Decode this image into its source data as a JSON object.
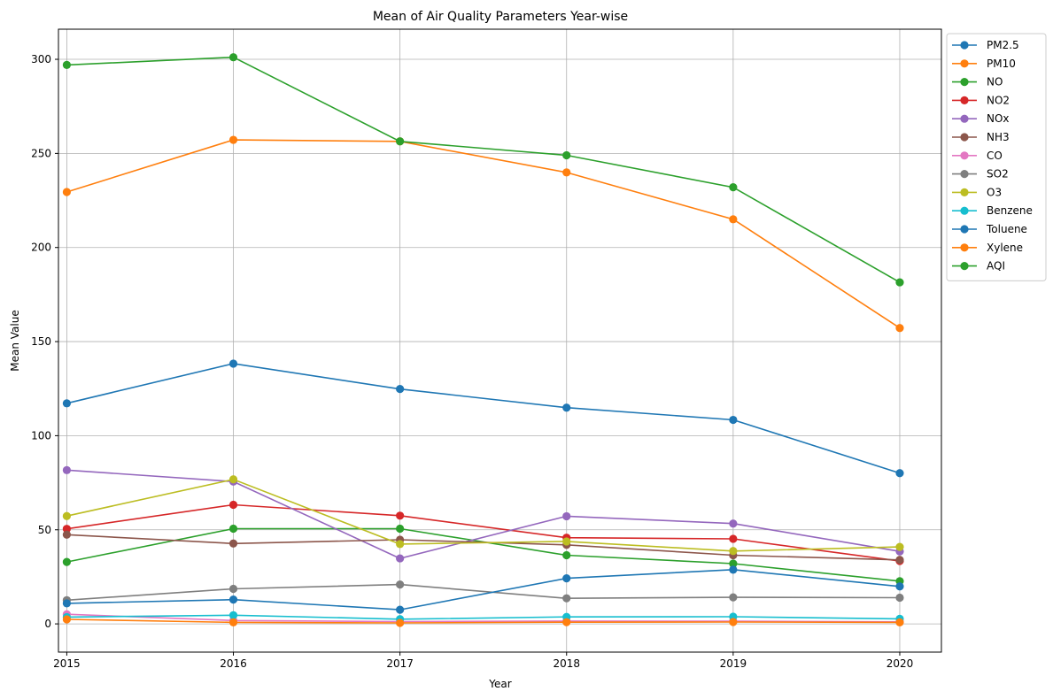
{
  "chart_data": {
    "type": "line",
    "title": "Mean of Air Quality Parameters Year-wise",
    "xlabel": "Year",
    "ylabel": "Mean Value",
    "x": [
      2015,
      2016,
      2017,
      2018,
      2019,
      2020
    ],
    "xlim": [
      2014.95,
      2020.25
    ],
    "ylim": [
      -15,
      316
    ],
    "yticks": [
      0,
      50,
      100,
      150,
      200,
      250,
      300
    ],
    "grid": true,
    "legend_position": "outside upper-right",
    "series": [
      {
        "name": "PM2.5",
        "color": "#1f77b4",
        "values": [
          117.2,
          138.3,
          124.8,
          114.9,
          108.4,
          80.1
        ]
      },
      {
        "name": "PM10",
        "color": "#ff7f0e",
        "values": [
          229.5,
          257.2,
          256.4,
          239.9,
          215.0,
          157.2
        ]
      },
      {
        "name": "NO",
        "color": "#2ca02c",
        "values": [
          32.9,
          50.6,
          50.6,
          36.5,
          32.0,
          22.7
        ]
      },
      {
        "name": "NO2",
        "color": "#d62728",
        "values": [
          50.5,
          63.3,
          57.5,
          45.8,
          45.2,
          33.4
        ]
      },
      {
        "name": "NOx",
        "color": "#9467bd",
        "values": [
          81.7,
          75.6,
          34.8,
          57.2,
          53.3,
          38.5
        ]
      },
      {
        "name": "NH3",
        "color": "#8c564b",
        "values": [
          47.4,
          42.7,
          44.7,
          42.0,
          36.5,
          34.0
        ]
      },
      {
        "name": "CO",
        "color": "#e377c2",
        "values": [
          5.1,
          1.8,
          1.2,
          1.5,
          1.4,
          1.1
        ]
      },
      {
        "name": "SO2",
        "color": "#7f7f7f",
        "values": [
          12.6,
          18.6,
          20.9,
          13.6,
          14.1,
          13.9
        ]
      },
      {
        "name": "O3",
        "color": "#bcbd22",
        "values": [
          57.3,
          76.8,
          42.4,
          43.8,
          38.7,
          40.9
        ]
      },
      {
        "name": "Benzene",
        "color": "#17becf",
        "values": [
          3.6,
          4.6,
          2.5,
          3.7,
          3.8,
          2.7
        ]
      },
      {
        "name": "Toluene",
        "color": "#1f77b4",
        "values": [
          10.9,
          12.9,
          7.5,
          24.2,
          28.8,
          19.9
        ]
      },
      {
        "name": "Xylene",
        "color": "#ff7f0e",
        "values": [
          2.4,
          0.8,
          0.5,
          0.9,
          1.0,
          0.8
        ]
      },
      {
        "name": "AQI",
        "color": "#2ca02c",
        "values": [
          297.0,
          301.1,
          256.4,
          249.0,
          232.0,
          181.5
        ]
      }
    ]
  }
}
